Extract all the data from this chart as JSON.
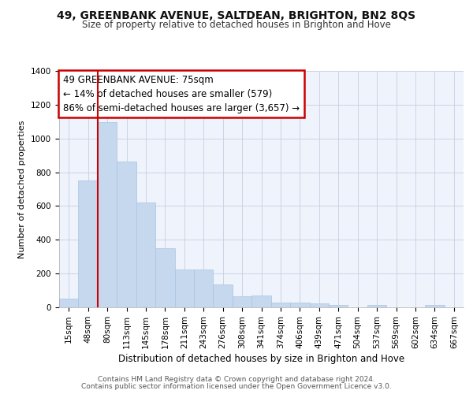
{
  "title1": "49, GREENBANK AVENUE, SALTDEAN, BRIGHTON, BN2 8QS",
  "title2": "Size of property relative to detached houses in Brighton and Hove",
  "xlabel": "Distribution of detached houses by size in Brighton and Hove",
  "ylabel": "Number of detached properties",
  "categories": [
    "15sqm",
    "48sqm",
    "80sqm",
    "113sqm",
    "145sqm",
    "178sqm",
    "211sqm",
    "243sqm",
    "276sqm",
    "308sqm",
    "341sqm",
    "374sqm",
    "406sqm",
    "439sqm",
    "471sqm",
    "504sqm",
    "537sqm",
    "569sqm",
    "602sqm",
    "634sqm",
    "667sqm"
  ],
  "values": [
    50,
    750,
    1095,
    865,
    620,
    350,
    225,
    225,
    135,
    65,
    70,
    30,
    30,
    22,
    15,
    0,
    12,
    0,
    0,
    12,
    0
  ],
  "bar_color": "#c5d8ee",
  "bar_edge_color": "#a8c4e0",
  "vline_index": 1.5,
  "vline_color": "#cc0000",
  "annotation_text": "49 GREENBANK AVENUE: 75sqm\n← 14% of detached houses are smaller (579)\n86% of semi-detached houses are larger (3,657) →",
  "ann_box_edgecolor": "#cc0000",
  "ylim": [
    0,
    1400
  ],
  "yticks": [
    0,
    200,
    400,
    600,
    800,
    1000,
    1200,
    1400
  ],
  "footer1": "Contains HM Land Registry data © Crown copyright and database right 2024.",
  "footer2": "Contains public sector information licensed under the Open Government Licence v3.0.",
  "bg_color": "#eef3fc",
  "grid_color": "#c8cfe0"
}
